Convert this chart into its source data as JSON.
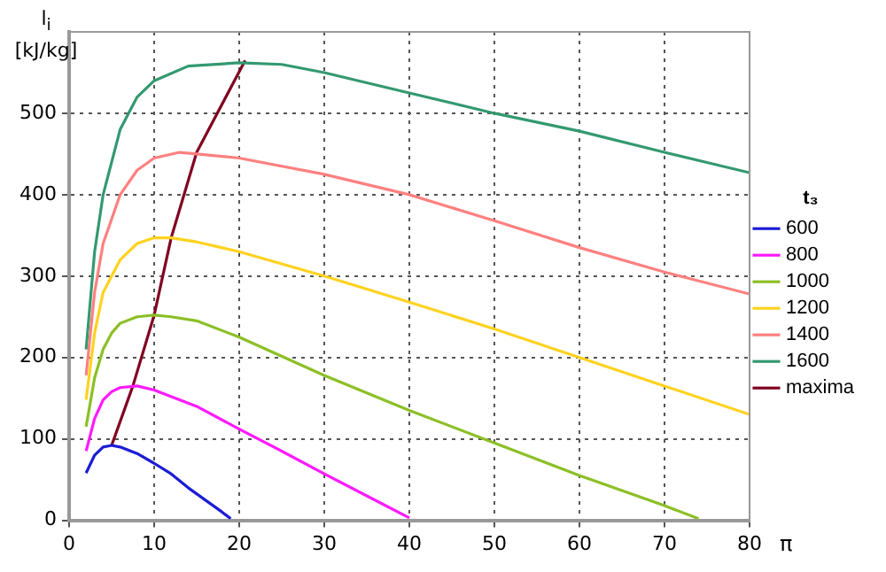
{
  "chart_data": {
    "type": "line",
    "xlabel": "π",
    "ylabel": "l$_{i}$ [kJ/kg]",
    "legend_title": "t₃",
    "xlim": [
      0,
      80
    ],
    "xticks": [
      0,
      10,
      20,
      30,
      40,
      50,
      60,
      70,
      80
    ],
    "ylim": [
      0,
      600
    ],
    "yticks": [
      0,
      100,
      200,
      300,
      400,
      500
    ],
    "grid": true,
    "legend": "right",
    "marker": "none",
    "line_style": "solid",
    "series": [
      {
        "name": "600",
        "color": "#1c1cd6",
        "x": [
          2,
          3,
          4,
          5,
          6,
          8,
          10,
          12,
          14,
          16,
          18,
          19
        ],
        "values": [
          58,
          80,
          90,
          92,
          90,
          82,
          70,
          57,
          40,
          25,
          10,
          2
        ]
      },
      {
        "name": "800",
        "color": "#ff1aff",
        "x": [
          2,
          3,
          4,
          5,
          6,
          8,
          10,
          15,
          20,
          25,
          30,
          35,
          40
        ],
        "values": [
          85,
          125,
          148,
          158,
          163,
          165,
          160,
          140,
          112,
          85,
          57,
          30,
          3
        ]
      },
      {
        "name": "1000",
        "color": "#8cbf26",
        "x": [
          2,
          3,
          4,
          5,
          6,
          8,
          10,
          12,
          15,
          20,
          30,
          40,
          50,
          60,
          70,
          74
        ],
        "values": [
          115,
          175,
          210,
          230,
          242,
          250,
          252,
          250,
          245,
          225,
          178,
          135,
          95,
          55,
          18,
          2
        ]
      },
      {
        "name": "1200",
        "color": "#ffd21f",
        "x": [
          2,
          3,
          4,
          6,
          8,
          10,
          12,
          15,
          20,
          30,
          40,
          50,
          60,
          70,
          80
        ],
        "values": [
          148,
          230,
          280,
          320,
          340,
          347,
          347,
          342,
          330,
          300,
          268,
          235,
          200,
          165,
          130
        ]
      },
      {
        "name": "1400",
        "color": "#ff8080",
        "x": [
          2,
          3,
          4,
          6,
          8,
          10,
          13,
          15,
          20,
          30,
          40,
          50,
          60,
          70,
          80
        ],
        "values": [
          178,
          280,
          340,
          400,
          430,
          445,
          452,
          450,
          445,
          425,
          400,
          368,
          335,
          305,
          278
        ]
      },
      {
        "name": "1600",
        "color": "#339970",
        "x": [
          2,
          3,
          4,
          6,
          8,
          10,
          14,
          20,
          25,
          30,
          40,
          50,
          60,
          70,
          80
        ],
        "values": [
          210,
          330,
          400,
          480,
          520,
          540,
          558,
          562,
          560,
          550,
          525,
          500,
          478,
          452,
          427
        ]
      },
      {
        "name": "maxima",
        "color": "#800020",
        "x": [
          5,
          7.5,
          10,
          12,
          15,
          20.7
        ],
        "values": [
          92,
          165,
          252,
          347,
          452,
          565
        ]
      }
    ]
  }
}
